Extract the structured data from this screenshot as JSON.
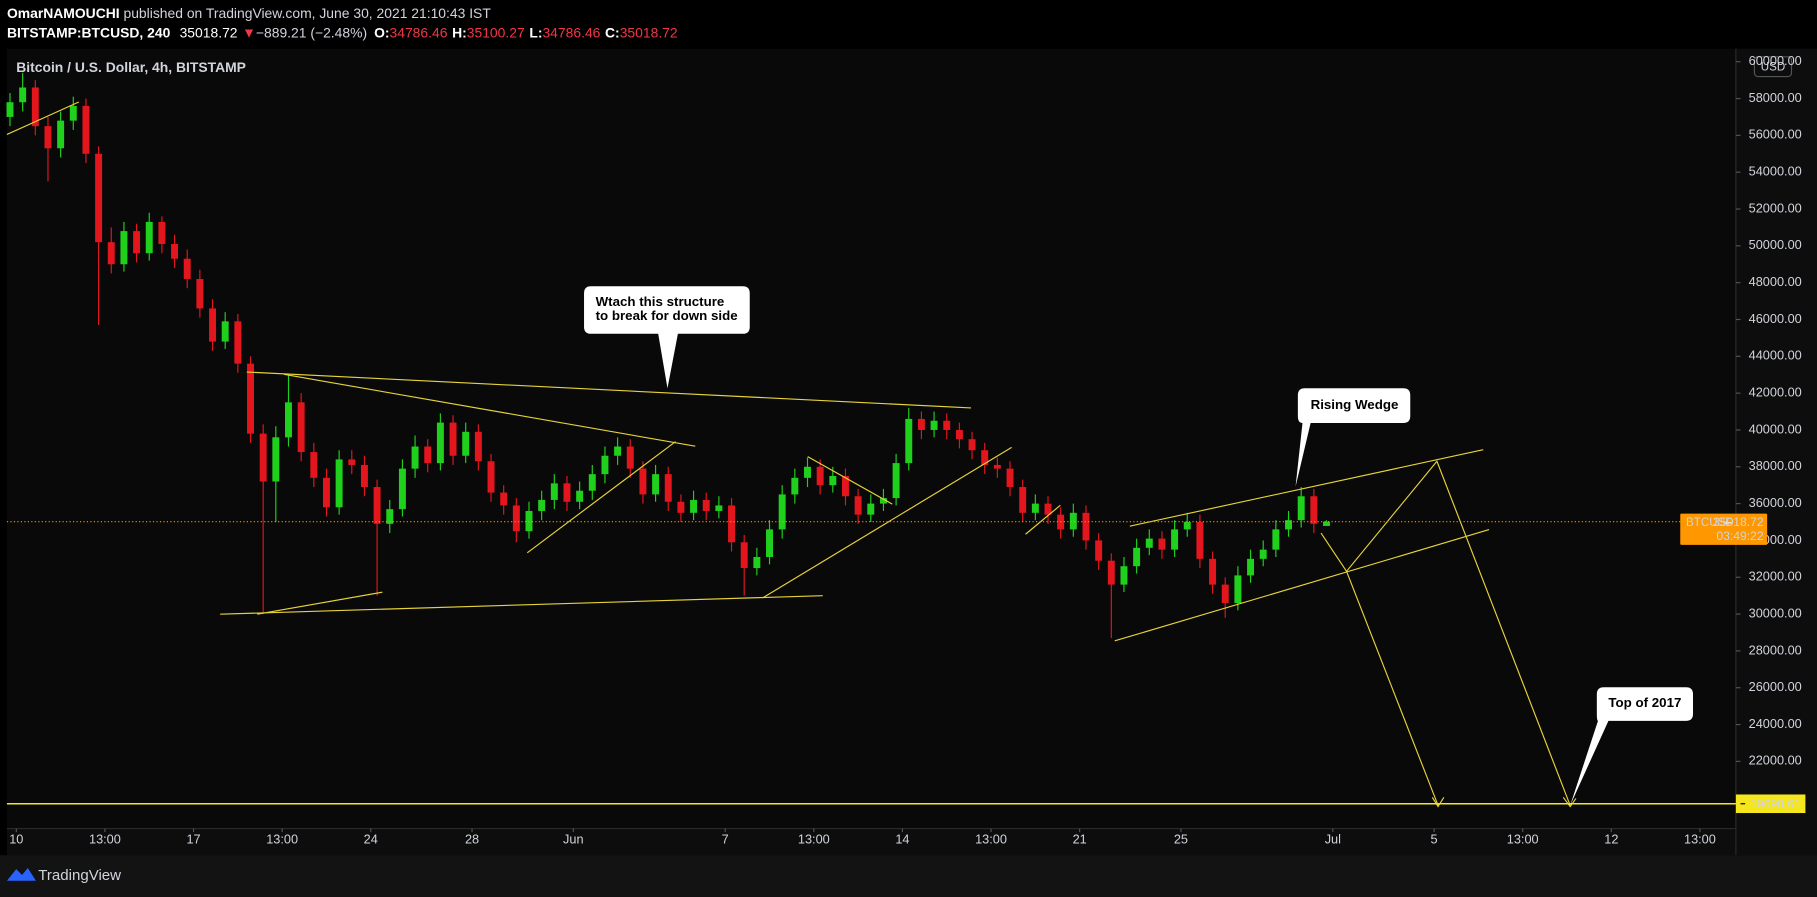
{
  "header": {
    "author": "OmarNAMOUCHI",
    "published": "published on TradingView.com, June 30, 2021 21:10:43 IST",
    "symbol": "BITSTAMP:BTCUSD, 240",
    "last": 35018.72,
    "change": "−889.21 (−2.48%)",
    "ohlc": [
      {
        "label": "O:",
        "value": 34786.46
      },
      {
        "label": "H:",
        "value": 35100.27
      },
      {
        "label": "L:",
        "value": 34786.46
      },
      {
        "label": "C:",
        "value": 35018.72
      }
    ]
  },
  "chart_data": {
    "type": "candlestick",
    "title": "Bitcoin / U.S. Dollar, 4h, BITSTAMP",
    "currency": "USD",
    "up_color": "#1fd11c",
    "down_color": "#e3161e",
    "x": [
      -0.25,
      0.25,
      0.75,
      1.25,
      1.75,
      2.25,
      2.75,
      3.25,
      3.75,
      4.25,
      4.75,
      5.25,
      5.75,
      6.25,
      6.75,
      7.25,
      7.75,
      8.25,
      8.75,
      9.25,
      9.75,
      10.25,
      10.75,
      11.25,
      11.75,
      12.25,
      12.75,
      13.25,
      13.75,
      14.25,
      14.75,
      15.25,
      15.75,
      16.25,
      16.75,
      17.25,
      17.75,
      18.25,
      18.75,
      19.25,
      19.75,
      20.25,
      20.75,
      21.25,
      21.75,
      22.25,
      22.75,
      23.25,
      23.75,
      24.25,
      24.75,
      25.25,
      25.75,
      26.25,
      26.75,
      27.25,
      27.75,
      28.25,
      28.75,
      29.25,
      29.75,
      30.25,
      30.75,
      31.25,
      31.75,
      32.25,
      32.75,
      33.25,
      33.75,
      34.25,
      34.75,
      35.25,
      35.75,
      36.25,
      36.75,
      37.25,
      37.75,
      38.25,
      38.75,
      39.25,
      39.75,
      40.25,
      40.75,
      41.25,
      41.75,
      42.25,
      42.75,
      43.25,
      43.75,
      44.25,
      44.75,
      45.25,
      45.75,
      46.25,
      46.75,
      47.25,
      47.75,
      48.25,
      48.75,
      49.25,
      49.75,
      50.25,
      50.75,
      51.25,
      51.75
    ],
    "open": [
      57000,
      57800,
      58600,
      56500,
      55300,
      56800,
      57600,
      55000,
      50200,
      49000,
      50800,
      49600,
      51300,
      50100,
      49300,
      48200,
      46600,
      44800,
      45900,
      43600,
      39800,
      37200,
      39600,
      41500,
      38800,
      37400,
      35800,
      38400,
      38100,
      36900,
      34900,
      35700,
      37900,
      39100,
      38200,
      40400,
      38600,
      39900,
      38300,
      36600,
      35900,
      34500,
      35600,
      36200,
      37100,
      36100,
      36700,
      37600,
      38600,
      39100,
      37900,
      36500,
      37600,
      36100,
      35500,
      36200,
      35600,
      35900,
      33900,
      32500,
      33100,
      34600,
      36500,
      37400,
      38000,
      37000,
      37500,
      36400,
      35400,
      36000,
      36300,
      38200,
      40600,
      40000,
      40500,
      40000,
      39500,
      38900,
      38100,
      37900,
      36900,
      35500,
      36000,
      35400,
      34600,
      35500,
      34000,
      32900,
      31600,
      32600,
      33600,
      34100,
      33500,
      34600,
      35000,
      33000,
      31600,
      30600,
      32100,
      33000,
      33500,
      34600,
      35100,
      36400,
      34786.46
    ],
    "high": [
      58300,
      59400,
      59000,
      57000,
      57300,
      58100,
      58000,
      55400,
      51000,
      51300,
      51200,
      51800,
      51600,
      50600,
      49800,
      48700,
      47100,
      46400,
      46300,
      44000,
      40300,
      40200,
      43000,
      42000,
      39300,
      37900,
      38900,
      38900,
      38600,
      37300,
      36200,
      38400,
      39700,
      39500,
      40900,
      40800,
      40400,
      40300,
      38700,
      37000,
      36300,
      36100,
      36700,
      37600,
      37500,
      37200,
      38100,
      39100,
      39600,
      39500,
      38300,
      38100,
      38000,
      36500,
      36700,
      36600,
      36400,
      36300,
      34300,
      33600,
      35100,
      37000,
      37900,
      38500,
      38400,
      38000,
      37900,
      36800,
      36500,
      36800,
      38700,
      41200,
      41000,
      41000,
      40900,
      40400,
      39900,
      39300,
      38500,
      38300,
      37300,
      36500,
      36400,
      35800,
      36000,
      35900,
      34400,
      33300,
      33100,
      34100,
      34600,
      34500,
      35100,
      35500,
      35400,
      33400,
      32000,
      32600,
      33500,
      34000,
      35100,
      35600,
      36900,
      36800,
      35100.27
    ],
    "low": [
      56500,
      57300,
      56000,
      53500,
      54800,
      56300,
      54500,
      45700,
      48500,
      48600,
      49100,
      49200,
      49600,
      48800,
      47700,
      46100,
      44300,
      44400,
      43100,
      39300,
      30000,
      35000,
      39100,
      38300,
      36900,
      35300,
      35400,
      37600,
      36400,
      31000,
      34400,
      35300,
      37400,
      37700,
      37800,
      38100,
      38200,
      37800,
      36100,
      35400,
      33900,
      34100,
      35100,
      35700,
      35600,
      35700,
      36200,
      37100,
      38100,
      37400,
      36000,
      36100,
      35600,
      35000,
      35100,
      35100,
      35200,
      33400,
      31000,
      32100,
      32700,
      34100,
      36000,
      36900,
      36500,
      36600,
      35900,
      34900,
      35000,
      35600,
      35900,
      37800,
      39500,
      39600,
      39500,
      39000,
      38400,
      37600,
      37400,
      36400,
      35000,
      35100,
      34900,
      34100,
      34200,
      33500,
      32400,
      28700,
      31200,
      32200,
      33200,
      33000,
      33100,
      34200,
      32500,
      31100,
      29800,
      30200,
      31700,
      32600,
      33100,
      34200,
      34700,
      34400,
      34786.46
    ],
    "close": [
      57800,
      58600,
      56500,
      55300,
      56800,
      57600,
      55000,
      50200,
      49000,
      50800,
      49600,
      51300,
      50100,
      49300,
      48200,
      46600,
      44800,
      45900,
      43600,
      39800,
      37200,
      39600,
      41500,
      38800,
      37400,
      35800,
      38400,
      38100,
      36900,
      34900,
      35700,
      37900,
      39100,
      38200,
      40400,
      38600,
      39900,
      38300,
      36600,
      35900,
      34500,
      35600,
      36200,
      37100,
      36100,
      36700,
      37600,
      38600,
      39100,
      37900,
      36500,
      37600,
      36100,
      35500,
      36200,
      35600,
      35900,
      33900,
      32500,
      33100,
      34600,
      36500,
      37400,
      38000,
      37000,
      37500,
      36400,
      35400,
      36000,
      36300,
      38200,
      40600,
      40000,
      40500,
      40000,
      39500,
      38900,
      38100,
      37900,
      36900,
      35500,
      36000,
      35400,
      34600,
      35500,
      34000,
      32900,
      31600,
      32600,
      33600,
      34100,
      33500,
      34600,
      35000,
      33000,
      31600,
      30600,
      32100,
      33000,
      33500,
      34600,
      35100,
      36400,
      34900,
      35018.72
    ],
    "xlim": [
      -0.37,
      67.92
    ],
    "ylim": [
      18350,
      60706
    ],
    "xticks": [
      {
        "value": 0,
        "label": "10"
      },
      {
        "value": 3.5,
        "label": "13:00"
      },
      {
        "value": 7,
        "label": "17"
      },
      {
        "value": 10.5,
        "label": "13:00"
      },
      {
        "value": 14,
        "label": "24"
      },
      {
        "value": 18,
        "label": "28"
      },
      {
        "value": 22,
        "label": "Jun"
      },
      {
        "value": 28,
        "label": "7"
      },
      {
        "value": 31.5,
        "label": "13:00"
      },
      {
        "value": 35,
        "label": "14"
      },
      {
        "value": 38.5,
        "label": "13:00"
      },
      {
        "value": 42,
        "label": "21"
      },
      {
        "value": 46,
        "label": "25"
      },
      {
        "value": 52,
        "label": "Jul"
      },
      {
        "value": 56,
        "label": "5"
      },
      {
        "value": 59.5,
        "label": "13:00"
      },
      {
        "value": 63,
        "label": "12"
      },
      {
        "value": 66.5,
        "label": "13:00"
      }
    ],
    "yticks": [
      {
        "value": 22000,
        "label": "22000.00"
      },
      {
        "value": 24000,
        "label": "24000.00"
      },
      {
        "value": 26000,
        "label": "26000.00"
      },
      {
        "value": 28000,
        "label": "28000.00"
      },
      {
        "value": 30000,
        "label": "30000.00"
      },
      {
        "value": 32000,
        "label": "32000.00"
      },
      {
        "value": 34000,
        "label": "34000.00"
      },
      {
        "value": 36000,
        "label": "36000.00"
      },
      {
        "value": 38000,
        "label": "38000.00"
      },
      {
        "value": 40000,
        "label": "40000.00"
      },
      {
        "value": 42000,
        "label": "42000.00"
      },
      {
        "value": 44000,
        "label": "44000.00"
      },
      {
        "value": 46000,
        "label": "46000.00"
      },
      {
        "value": 48000,
        "label": "48000.00"
      },
      {
        "value": 50000,
        "label": "50000.00"
      },
      {
        "value": 52000,
        "label": "52000.00"
      },
      {
        "value": 54000,
        "label": "54000.00"
      },
      {
        "value": 56000,
        "label": "56000.00"
      },
      {
        "value": 58000,
        "label": "58000.00"
      },
      {
        "value": 60000,
        "label": "60000.00"
      }
    ],
    "grid": false,
    "price_line": {
      "symbol": "BTCUSD",
      "value": 35018.72,
      "countdown": "03:49:22",
      "color": "#ff9800"
    },
    "level": {
      "value": 19698.61,
      "color": "#f5e61e"
    },
    "annotations": [
      {
        "lines": [
          "Wtach this structure",
          "to break for down side"
        ]
      },
      {
        "lines": [
          "Rising Wedge"
        ]
      },
      {
        "lines": [
          "Top of 2017"
        ]
      }
    ]
  },
  "footer": {
    "brand": "TradingView"
  }
}
